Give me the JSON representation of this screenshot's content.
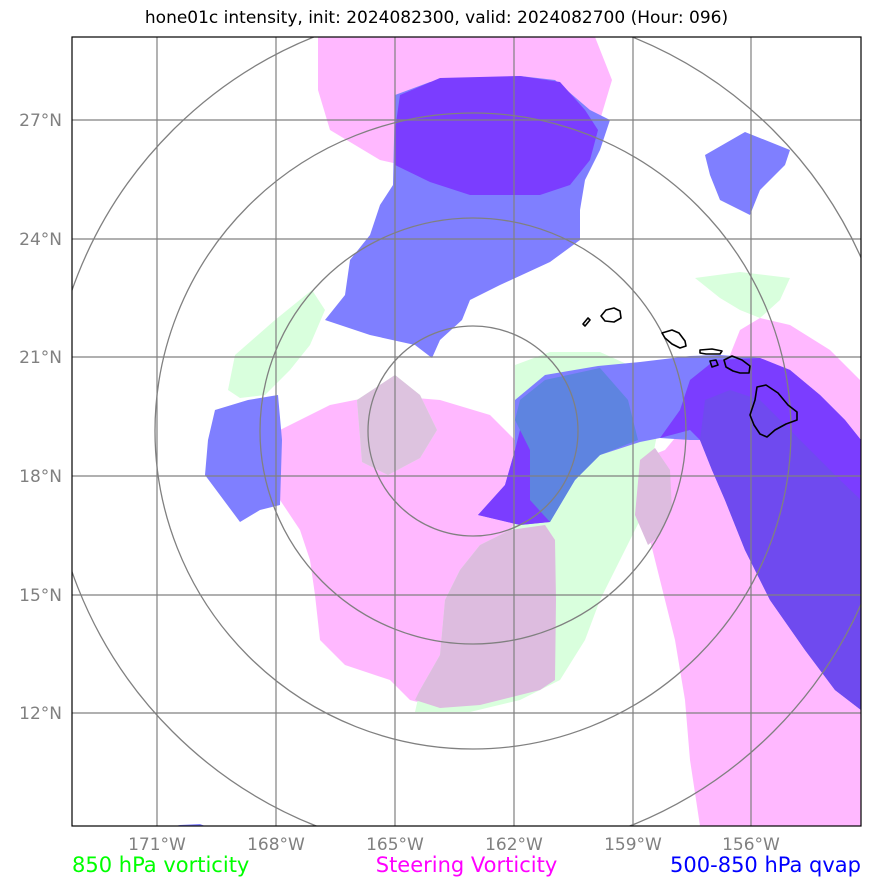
{
  "title": "hone01c intensity, init: 2024082300, valid: 2024082700 (Hour: 096)",
  "lat_labels": [
    "27°N",
    "24°N",
    "21°N",
    "18°N",
    "15°N",
    "12°N"
  ],
  "lon_labels": [
    "171°W",
    "168°W",
    "165°W",
    "162°W",
    "159°W",
    "156°W"
  ],
  "legend": {
    "vorticity850": {
      "label": "850 hPa vorticity",
      "color": "#00ff00"
    },
    "steering": {
      "label": "Steering Vorticity",
      "color": "#ff00ff"
    },
    "qvap": {
      "label": "500-850 hPa qvap",
      "color": "#0000ff"
    }
  },
  "colors": {
    "steering_fill": "#ffb8ff",
    "qvap_fill": "#7f7fff",
    "qvap_dark": "#7b3dff",
    "vort_fill": "#d9ffdd",
    "grid": "#808080",
    "coast": "#000000"
  }
}
